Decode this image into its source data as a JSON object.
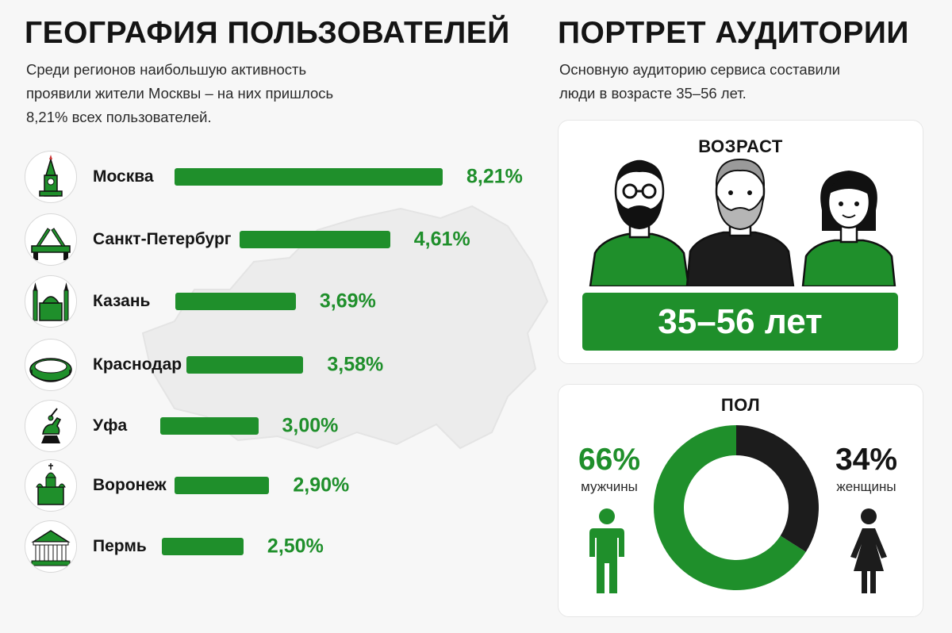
{
  "colors": {
    "accent": "#1f8f2b",
    "dark": "#1c1c1c",
    "text": "#141414",
    "background": "#f7f7f7"
  },
  "geo": {
    "title": "ГЕОГРАФИЯ ПОЛЬЗОВАТЕЛЕЙ",
    "description": "Среди регионов наибольшую активность проявили жители Москвы – на них пришлось 8,21% всех пользователей."
  },
  "audience": {
    "title": "ПОРТРЕТ АУДИТОРИИ",
    "description": "Основную аудиторию сервиса составили люди в возрасте 35–56 лет.",
    "age_title": "ВОЗРАСТ",
    "age_value": "35–56 лет",
    "gender_title": "ПОЛ",
    "male_pct": "66%",
    "male_label": "мужчины",
    "female_pct": "34%",
    "female_label": "женщины"
  },
  "chart_data": [
    {
      "type": "bar",
      "orientation": "horizontal",
      "categories": [
        "Москва",
        "Санкт-Петербург",
        "Казань",
        "Краснодар",
        "Уфа",
        "Воронеж",
        "Пермь"
      ],
      "values": [
        8.21,
        4.61,
        3.69,
        3.58,
        3.0,
        2.9,
        2.5
      ],
      "value_labels": [
        "8,21%",
        "4,61%",
        "3,69%",
        "3,58%",
        "3,00%",
        "2,90%",
        "2,50%"
      ],
      "icons": [
        "kremlin-tower-icon",
        "drawbridge-icon",
        "mosque-icon",
        "stadium-icon",
        "horseman-monument-icon",
        "cathedral-icon",
        "theatre-icon"
      ],
      "title": "ГЕОГРАФИЯ ПОЛЬЗОВАТЕЛЕЙ",
      "unit": "%"
    },
    {
      "type": "pie",
      "variant": "donut",
      "title": "ПОЛ",
      "categories": [
        "мужчины",
        "женщины"
      ],
      "values": [
        66,
        34
      ],
      "colors": [
        "#1f8f2b",
        "#1c1c1c"
      ]
    }
  ]
}
